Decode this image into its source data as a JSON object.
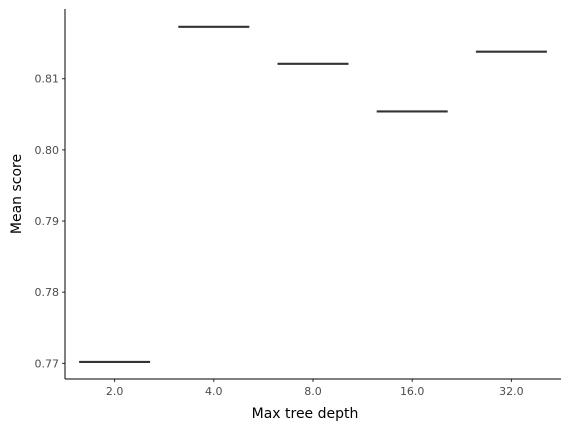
{
  "chart_data": {
    "type": "bar",
    "title": "",
    "xlabel": "Max tree depth",
    "ylabel": "Mean score",
    "categories": [
      "2.0",
      "4.0",
      "8.0",
      "16.0",
      "32.0"
    ],
    "values": [
      0.7702,
      0.8173,
      0.8121,
      0.8054,
      0.8138
    ],
    "ylim": [
      0.7678,
      0.8198
    ],
    "yticks": [
      0.77,
      0.78,
      0.79,
      0.8,
      0.81
    ],
    "ytick_labels": [
      "0.77",
      "0.78",
      "0.79",
      "0.80",
      "0.81"
    ],
    "grid": false,
    "legend": "none",
    "mark_color": "#333333",
    "axis_color": "#000000"
  }
}
